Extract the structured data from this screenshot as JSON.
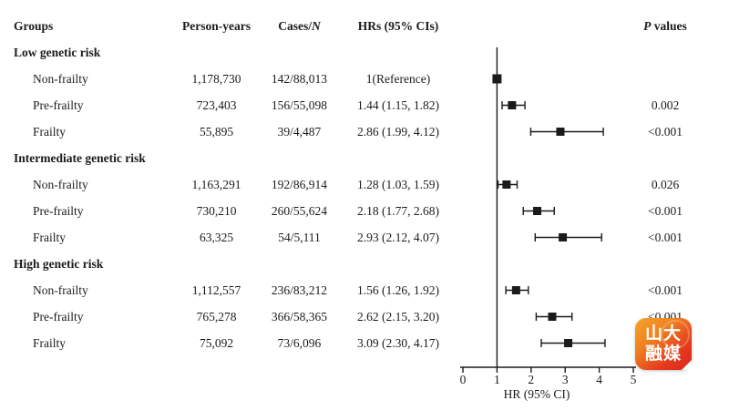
{
  "table": {
    "header": {
      "groups": "Groups",
      "person_years": "Person-years",
      "cases_prefix": "Cases/",
      "cases_n_italic": "N",
      "hrs": "HRs (95% CIs)",
      "p_italic": "P",
      "p_rest": " values"
    },
    "rows": [
      {
        "type": "section",
        "label": "Low genetic risk"
      },
      {
        "type": "data",
        "label": "Non-frailty",
        "person_years": "1,178,730",
        "cases": "142/88,013",
        "hr": "1(Reference)",
        "p": ""
      },
      {
        "type": "data",
        "label": "Pre-frailty",
        "person_years": "723,403",
        "cases": "156/55,098",
        "hr": "1.44 (1.15, 1.82)",
        "p": "0.002"
      },
      {
        "type": "data",
        "label": "Frailty",
        "person_years": "55,895",
        "cases": "39/4,487",
        "hr": "2.86 (1.99, 4.12)",
        "p": "<0.001"
      },
      {
        "type": "section",
        "label": "Intermediate genetic risk"
      },
      {
        "type": "data",
        "label": "Non-frailty",
        "person_years": "1,163,291",
        "cases": "192/86,914",
        "hr": "1.28 (1.03, 1.59)",
        "p": "0.026"
      },
      {
        "type": "data",
        "label": "Pre-frailty",
        "person_years": "730,210",
        "cases": "260/55,624",
        "hr": "2.18 (1.77, 2.68)",
        "p": "<0.001"
      },
      {
        "type": "data",
        "label": "Frailty",
        "person_years": "63,325",
        "cases": "54/5,111",
        "hr": "2.93 (2.12, 4.07)",
        "p": "<0.001"
      },
      {
        "type": "section",
        "label": "High genetic risk"
      },
      {
        "type": "data",
        "label": "Non-frailty",
        "person_years": "1,112,557",
        "cases": "236/83,212",
        "hr": "1.56 (1.26, 1.92)",
        "p": "<0.001"
      },
      {
        "type": "data",
        "label": "Pre-frailty",
        "person_years": "765,278",
        "cases": "366/58,365",
        "hr": "2.62 (2.15, 3.20)",
        "p": "<0.001"
      },
      {
        "type": "data",
        "label": "Frailty",
        "person_years": "75,092",
        "cases": "73/6,096",
        "hr": "3.09 (2.30, 4.17)",
        "p": ""
      }
    ]
  },
  "chart_data": {
    "type": "scatter",
    "subtype": "forest-plot",
    "xlabel": "HR (95% CI)",
    "xlim": [
      0,
      5
    ],
    "xticks": [
      0,
      1,
      2,
      3,
      4,
      5
    ],
    "reference_line_x": 1,
    "marker_color": "#1b1b1b",
    "points": [
      {
        "label": "Low genetic risk / Non-frailty",
        "hr": 1.0,
        "lo": null,
        "hi": null,
        "row": 2
      },
      {
        "label": "Low genetic risk / Pre-frailty",
        "hr": 1.44,
        "lo": 1.15,
        "hi": 1.82,
        "row": 3
      },
      {
        "label": "Low genetic risk / Frailty",
        "hr": 2.86,
        "lo": 1.99,
        "hi": 4.12,
        "row": 4
      },
      {
        "label": "Intermediate genetic risk / Non-frailty",
        "hr": 1.28,
        "lo": 1.03,
        "hi": 1.59,
        "row": 6
      },
      {
        "label": "Intermediate genetic risk / Pre-frailty",
        "hr": 2.18,
        "lo": 1.77,
        "hi": 2.68,
        "row": 7
      },
      {
        "label": "Intermediate genetic risk / Frailty",
        "hr": 2.93,
        "lo": 2.12,
        "hi": 4.07,
        "row": 8
      },
      {
        "label": "High genetic risk / Non-frailty",
        "hr": 1.56,
        "lo": 1.26,
        "hi": 1.92,
        "row": 10
      },
      {
        "label": "High genetic risk / Pre-frailty",
        "hr": 2.62,
        "lo": 2.15,
        "hi": 3.2,
        "row": 11
      },
      {
        "label": "High genetic risk / Frailty",
        "hr": 3.09,
        "lo": 2.3,
        "hi": 4.17,
        "row": 12
      }
    ]
  },
  "logo": {
    "line1": "山大",
    "line2": "融媒",
    "color_top": "#f6a42e",
    "color_bottom": "#d9281b"
  },
  "colors": {
    "text": "#1b1b1b",
    "background": "#ffffff"
  }
}
